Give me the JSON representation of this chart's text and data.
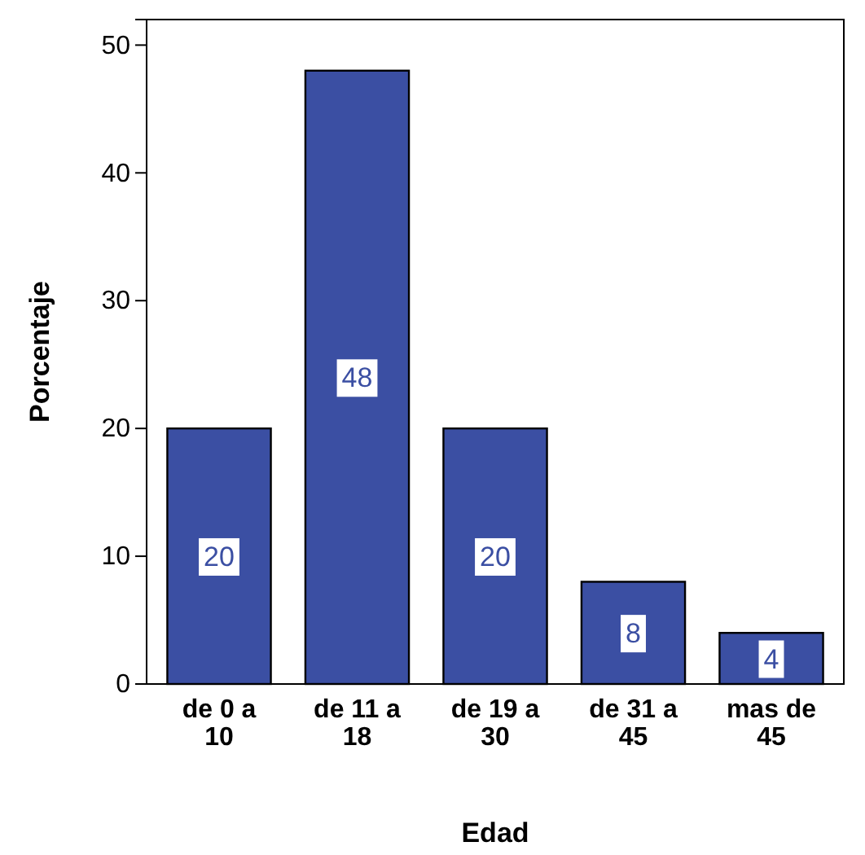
{
  "chart_data": {
    "type": "bar",
    "xlabel": "Edad",
    "ylabel": "Porcentaje",
    "categories": [
      "de 0 a 10",
      "de 11 a 18",
      "de 19 a 30",
      "de 31 a 45",
      "mas de 45"
    ],
    "values": [
      20,
      48,
      20,
      8,
      4
    ],
    "color": "#3b4fa3",
    "ylim": [
      0,
      52
    ],
    "yticks": [
      0,
      10,
      20,
      30,
      40,
      50
    ],
    "grid": false,
    "data_labels": true
  }
}
